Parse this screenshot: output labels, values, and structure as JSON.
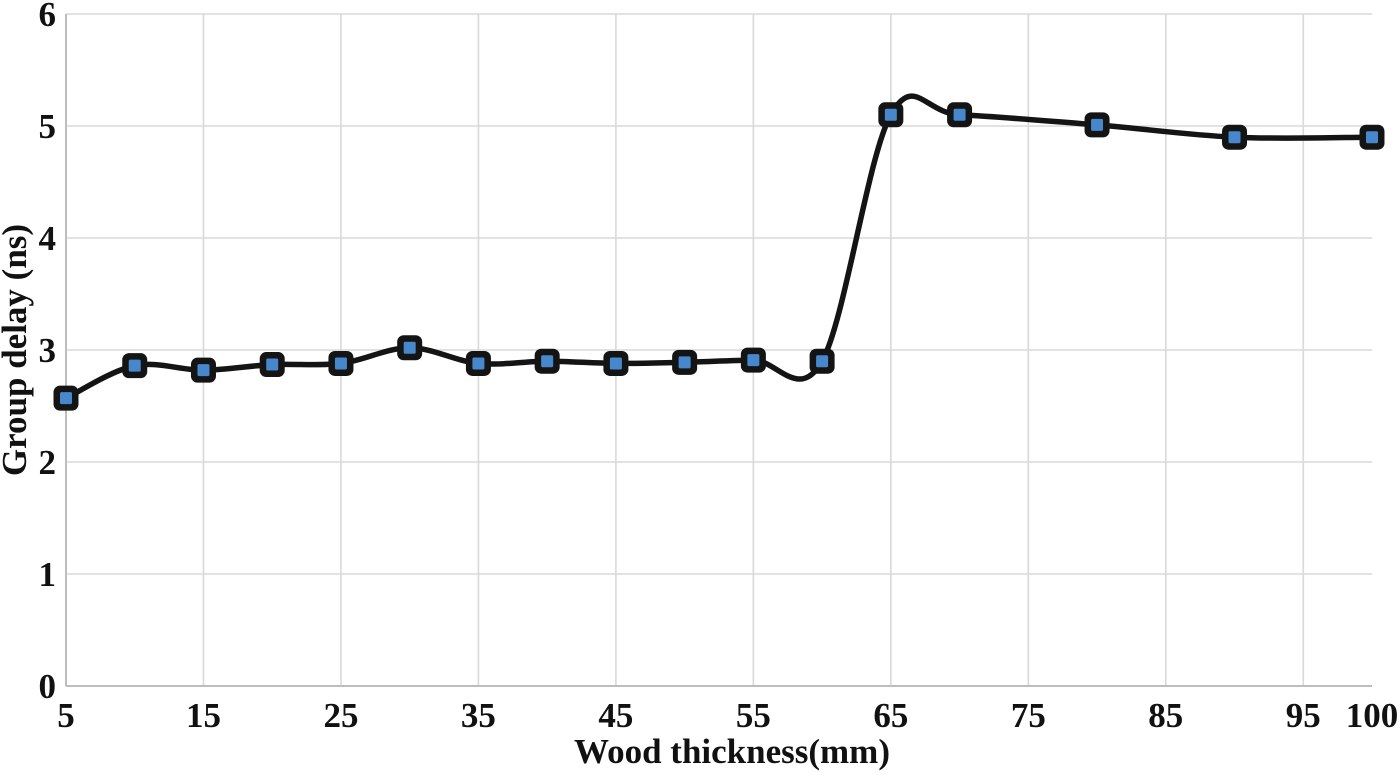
{
  "chart_data": {
    "type": "line",
    "title": "",
    "xlabel": "Wood thickness(mm)",
    "ylabel": "Group delay (ns)",
    "series": [
      {
        "name": "Group delay",
        "x": [
          5,
          10,
          15,
          20,
          25,
          30,
          35,
          40,
          45,
          50,
          55,
          60,
          65,
          70,
          80,
          90,
          100
        ],
        "y": [
          2.57,
          2.86,
          2.82,
          2.87,
          2.88,
          3.02,
          2.88,
          2.9,
          2.88,
          2.89,
          2.91,
          2.9,
          5.1,
          5.1,
          5.01,
          4.9,
          4.9
        ]
      }
    ],
    "xlim": [
      5,
      100
    ],
    "ylim": [
      0,
      6
    ],
    "x_ticks": [
      5,
      15,
      25,
      35,
      45,
      55,
      65,
      75,
      85,
      95,
      100
    ],
    "y_ticks": [
      0,
      1,
      2,
      3,
      4,
      5,
      6
    ],
    "grid": true,
    "legend": "none",
    "line_style": "smooth",
    "marker_shape": "square",
    "colors": {
      "line": "#141414",
      "marker_fill": "#4788cc",
      "marker_border": "#141414",
      "grid": "#d9d9d9",
      "axis": "#bdbdbd",
      "text": "#111111",
      "background": "#ffffff"
    }
  }
}
